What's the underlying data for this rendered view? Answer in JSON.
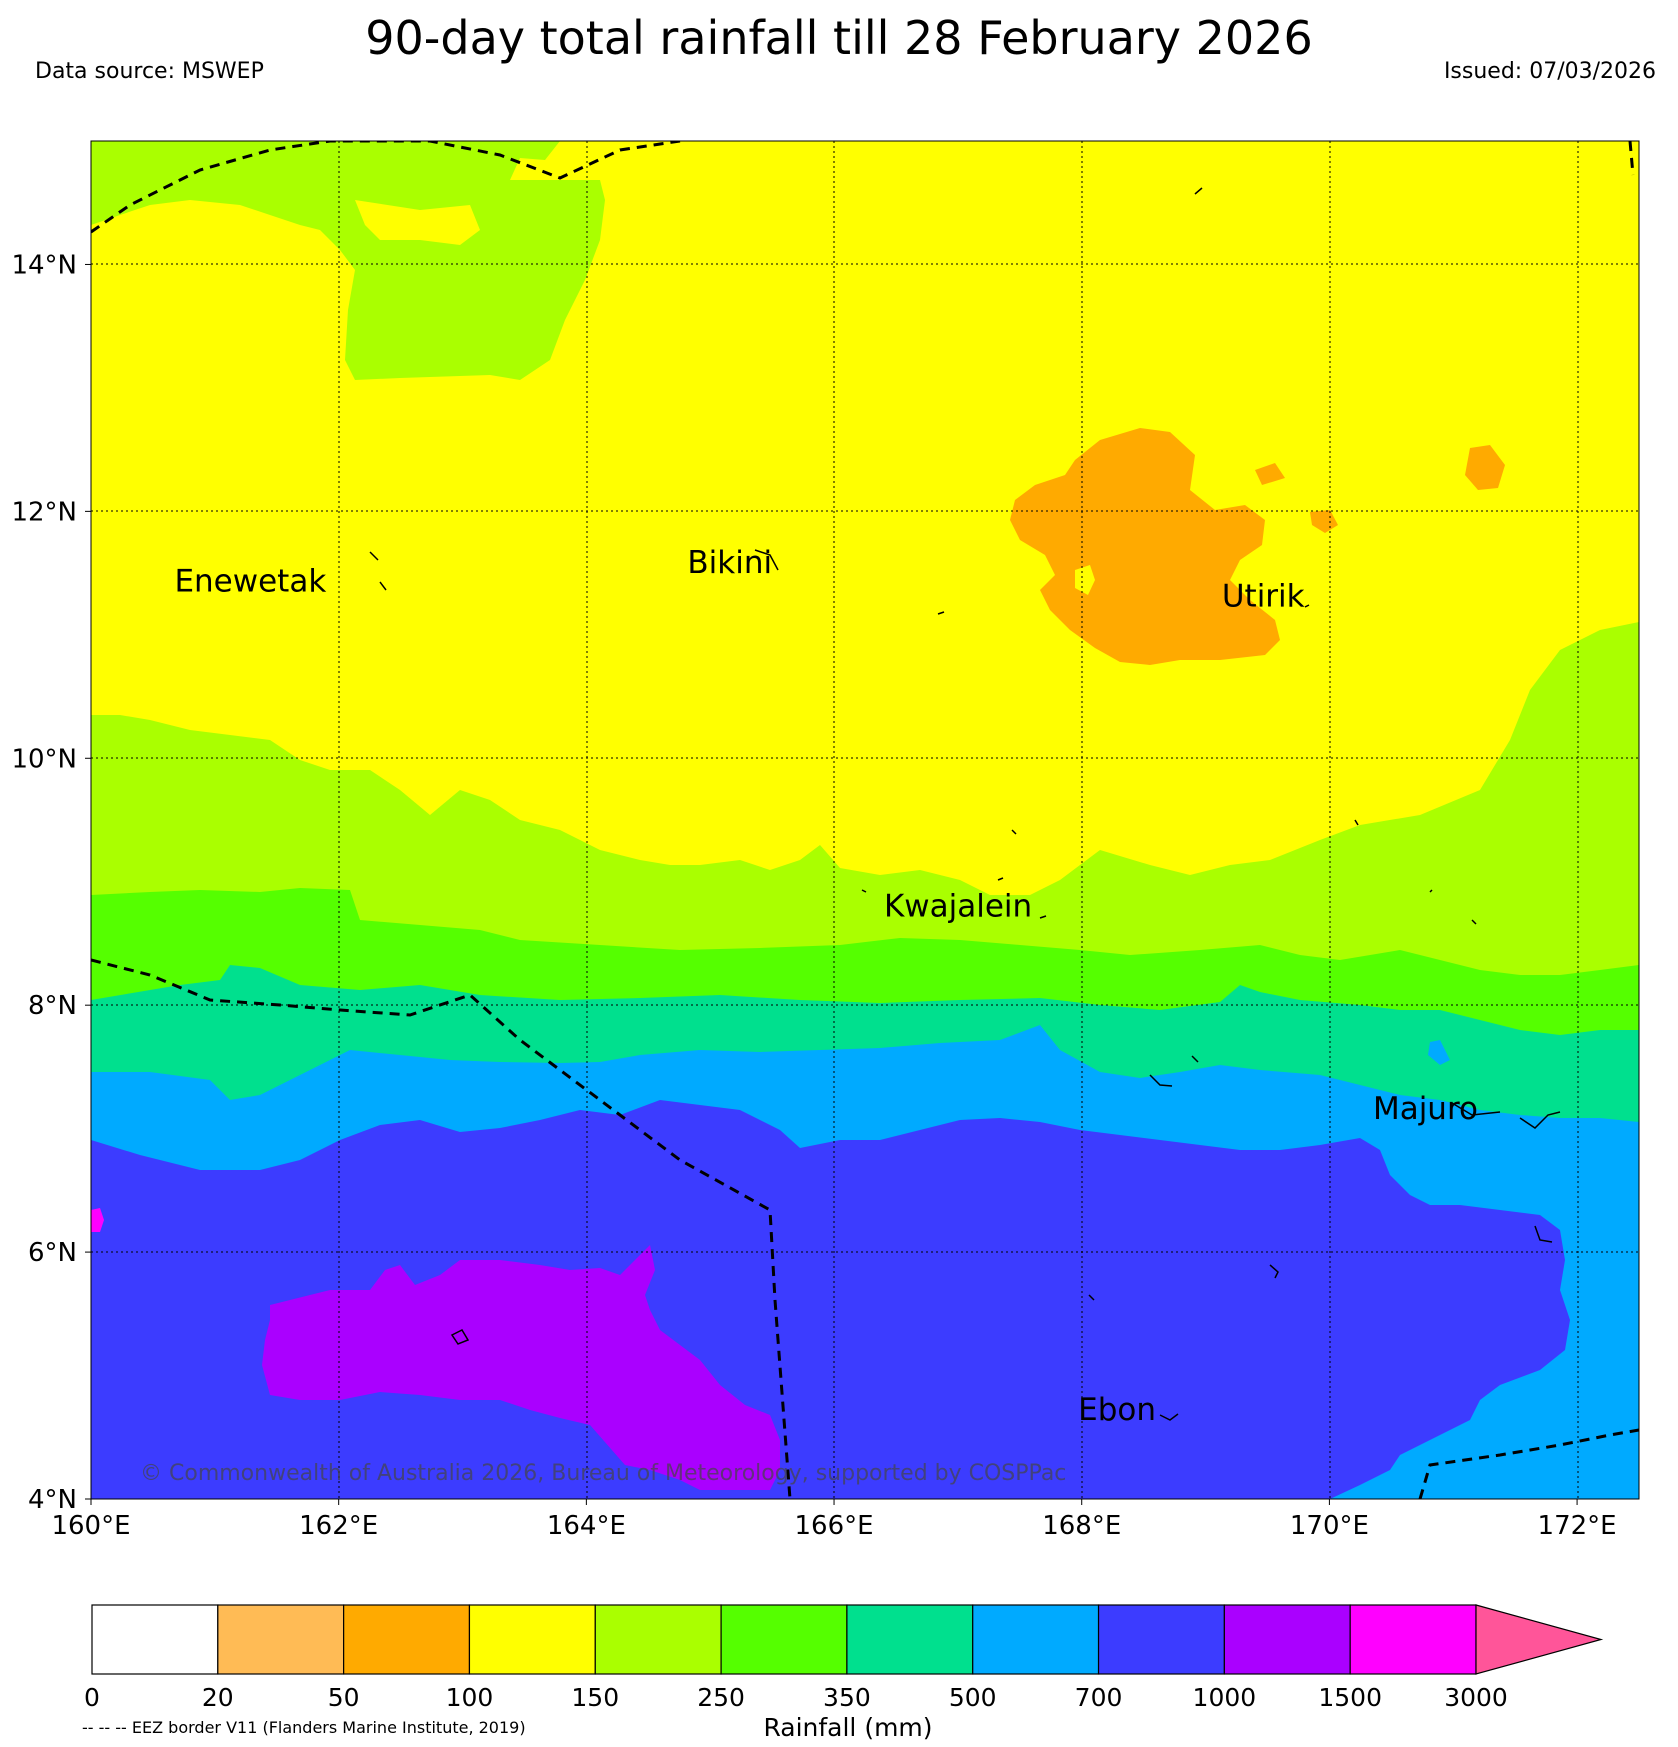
{
  "header": {
    "title": "90-day total rainfall till 28 February 2026",
    "data_source": "Data source: MSWEP",
    "issued": "Issued: 07/03/2026"
  },
  "map": {
    "lon_range": [
      160,
      172.5
    ],
    "lat_range": [
      4,
      15
    ],
    "lon_ticks": [
      {
        "value": 160,
        "label": "160°E"
      },
      {
        "value": 162,
        "label": "162°E"
      },
      {
        "value": 164,
        "label": "164°E"
      },
      {
        "value": 166,
        "label": "166°E"
      },
      {
        "value": 168,
        "label": "168°E"
      },
      {
        "value": 170,
        "label": "170°E"
      },
      {
        "value": 172,
        "label": "172°E"
      }
    ],
    "lat_ticks": [
      {
        "value": 4,
        "label": "4°N"
      },
      {
        "value": 6,
        "label": "6°N"
      },
      {
        "value": 8,
        "label": "8°N"
      },
      {
        "value": 10,
        "label": "10°N"
      },
      {
        "value": 12,
        "label": "12°N"
      },
      {
        "value": 14,
        "label": "14°N"
      }
    ],
    "grid": true,
    "places": [
      {
        "name": "Enewetak",
        "lon": 161.9,
        "lat": 11.35
      },
      {
        "name": "Bikini",
        "lon": 165.5,
        "lat": 11.5
      },
      {
        "name": "Utirik",
        "lon": 169.8,
        "lat": 11.23
      },
      {
        "name": "Kwajalein",
        "lon": 167.6,
        "lat": 8.72
      },
      {
        "name": "Majuro",
        "lon": 171.2,
        "lat": 7.08
      },
      {
        "name": "Ebon",
        "lon": 168.6,
        "lat": 4.64
      }
    ],
    "copyright": "© Commonwealth of Australia 2026, Bureau of Meteorology, supported by COSPPac"
  },
  "legend": {
    "title": "Rainfall (mm)",
    "boundaries": [
      "0",
      "20",
      "50",
      "100",
      "150",
      "250",
      "350",
      "500",
      "700",
      "1000",
      "1500",
      "3000"
    ],
    "colors": [
      "#ffffff",
      "#ffbb55",
      "#ffaa00",
      "#ffff00",
      "#aaff00",
      "#55ff00",
      "#00e08e",
      "#00aaff",
      "#3c3cff",
      "#aa00ff",
      "#ff00ff"
    ],
    "extend_color": "#ff5599"
  },
  "eez_note": "-- -- -- EEZ border V11 (Flanders Marine Institute, 2019)"
}
